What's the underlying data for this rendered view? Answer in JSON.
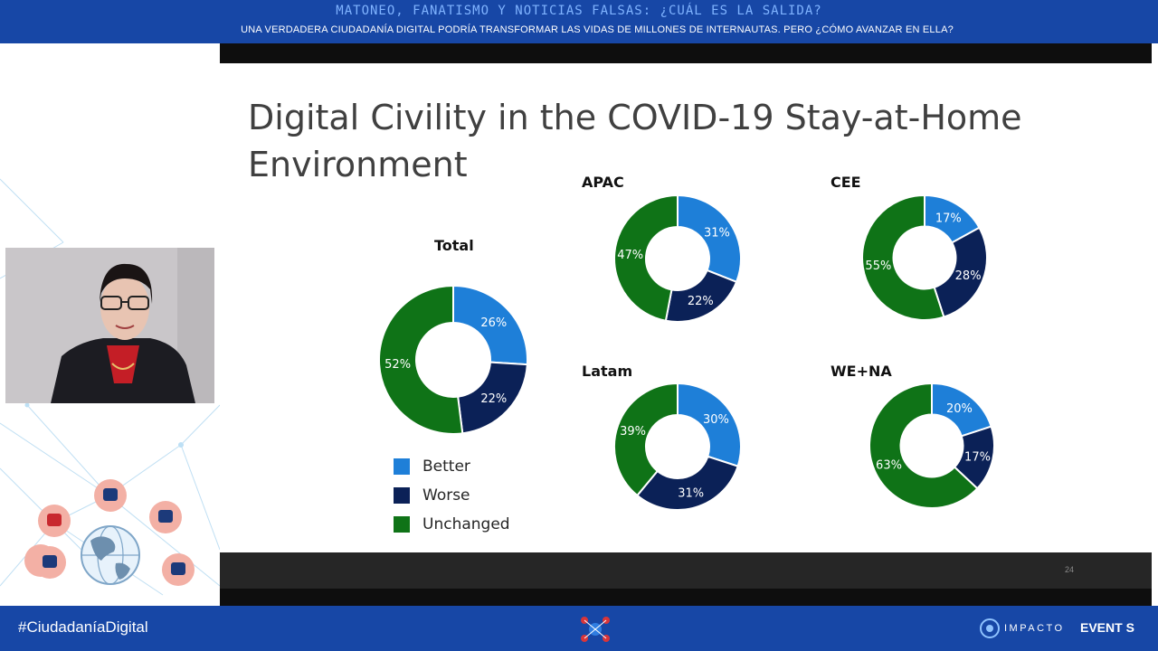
{
  "banner": {
    "title": "MATONEO, FANATISMO Y NOTICIAS FALSAS: ¿CUÁL ES LA SALIDA?",
    "subtitle": "UNA VERDADERA CIUDADANÍA DIGITAL PODRÍA TRANSFORMAR LAS VIDAS DE MILLONES DE INTERNAUTAS. PERO ¿CÓMO AVANZAR EN ELLA?"
  },
  "slide": {
    "title": "Digital Civility in the COVID-19 Stay-at-Home Environment",
    "page_number": "24"
  },
  "footer": {
    "hashtag": "#CiudadaníaDigital",
    "brand_impacto": "IMPACTO",
    "brand_eventos": "EVENT S"
  },
  "colors": {
    "better": "#1e7fd8",
    "worse": "#0b2157",
    "unchanged": "#0f7317"
  },
  "chart_data": [
    {
      "type": "pie",
      "title": "Total",
      "categories": [
        "Better",
        "Worse",
        "Unchanged"
      ],
      "values": [
        26,
        22,
        52
      ],
      "value_labels": [
        "26%",
        "22%",
        "52%"
      ]
    },
    {
      "type": "pie",
      "title": "APAC",
      "categories": [
        "Better",
        "Worse",
        "Unchanged"
      ],
      "values": [
        31,
        22,
        47
      ],
      "value_labels": [
        "31%",
        "22%",
        "47%"
      ]
    },
    {
      "type": "pie",
      "title": "CEE",
      "categories": [
        "Better",
        "Worse",
        "Unchanged"
      ],
      "values": [
        17,
        28,
        55
      ],
      "value_labels": [
        "17%",
        "28%",
        "55%"
      ]
    },
    {
      "type": "pie",
      "title": "Latam",
      "categories": [
        "Better",
        "Worse",
        "Unchanged"
      ],
      "values": [
        30,
        31,
        39
      ],
      "value_labels": [
        "30%",
        "31%",
        "39%"
      ]
    },
    {
      "type": "pie",
      "title": "WE+NA",
      "categories": [
        "Better",
        "Worse",
        "Unchanged"
      ],
      "values": [
        20,
        17,
        63
      ],
      "value_labels": [
        "20%",
        "17%",
        "63%"
      ]
    }
  ],
  "legend": [
    "Better",
    "Worse",
    "Unchanged"
  ]
}
